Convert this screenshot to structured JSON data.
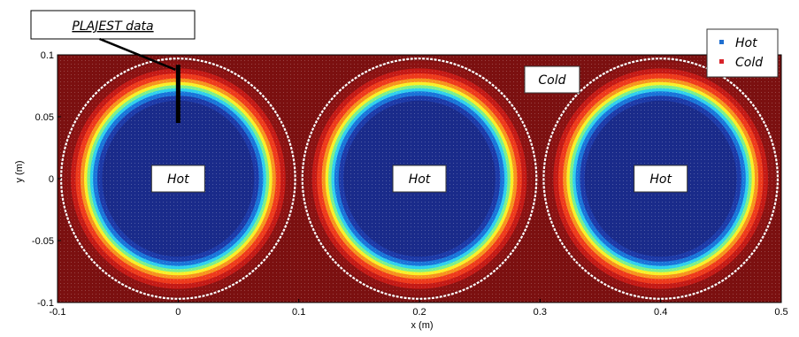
{
  "chart_data": {
    "type": "heatmap",
    "title": "",
    "xlabel": "x (m)",
    "ylabel": "y (m)",
    "xlim": [
      -0.1,
      0.5
    ],
    "ylim": [
      -0.1,
      0.1
    ],
    "x_ticks": [
      "-0.1",
      "0",
      "0.1",
      "0.2",
      "0.3",
      "0.4",
      "0.5"
    ],
    "x_tick_values": [
      -0.1,
      0,
      0.1,
      0.2,
      0.3,
      0.4,
      0.5
    ],
    "y_ticks": [
      "0.1",
      "0.05",
      "0",
      "-0.05",
      "-0.1"
    ],
    "y_tick_values": [
      0.1,
      0.05,
      0,
      -0.05,
      -0.1
    ],
    "background_color": "#7b1010",
    "circles": [
      {
        "center": [
          0,
          0
        ],
        "label": "Hot",
        "boundary_radius": 0.097
      },
      {
        "center": [
          0.2,
          0
        ],
        "label": "Hot",
        "boundary_radius": 0.097
      },
      {
        "center": [
          0.4,
          0
        ],
        "label": "Hot",
        "boundary_radius": 0.097
      }
    ],
    "color_bands": [
      {
        "r": 0.095,
        "color": "#8b1212"
      },
      {
        "r": 0.089,
        "color": "#c41a16"
      },
      {
        "r": 0.085,
        "color": "#ee3a1c"
      },
      {
        "r": 0.081,
        "color": "#f7931e"
      },
      {
        "r": 0.078,
        "color": "#f9ef28"
      },
      {
        "r": 0.0755,
        "color": "#7cf08c"
      },
      {
        "r": 0.073,
        "color": "#2fd0ee"
      },
      {
        "r": 0.0705,
        "color": "#1a74d9"
      },
      {
        "r": 0.067,
        "color": "#1d3aa8"
      },
      {
        "r": 0.063,
        "color": "#1a2b8a"
      }
    ],
    "legend": {
      "position": "top-right",
      "items": [
        {
          "label": "Hot",
          "color": "#1f6fd0"
        },
        {
          "label": "Cold",
          "color": "#d8232a"
        }
      ]
    },
    "annotations": {
      "cold_label": "Cold",
      "cold_position": [
        0.31,
        0.08
      ],
      "callout": "PLAJEST data",
      "probe_x": 0,
      "probe_y_range": [
        0.045,
        0.092
      ]
    }
  }
}
